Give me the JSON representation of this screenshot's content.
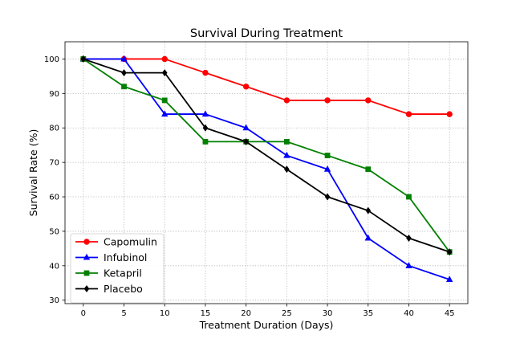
{
  "chart_data": {
    "type": "line",
    "title": "Survival During Treatment",
    "xlabel": "Treatment Duration (Days)",
    "ylabel": "Survival Rate (%)",
    "x": [
      0,
      5,
      10,
      15,
      20,
      25,
      30,
      35,
      40,
      45
    ],
    "xticks": [
      0,
      5,
      10,
      15,
      20,
      25,
      30,
      35,
      40,
      45
    ],
    "yticks": [
      30,
      40,
      50,
      60,
      70,
      80,
      90,
      100
    ],
    "xlim": [
      -2.25,
      47.25
    ],
    "ylim": [
      29,
      105
    ],
    "grid": true,
    "legend_position": "lower-left",
    "series": [
      {
        "name": "Capomulin",
        "color": "#ff0000",
        "marker": "circle",
        "values": [
          100,
          100,
          100,
          96,
          92,
          88,
          88,
          88,
          84,
          84
        ]
      },
      {
        "name": "Infubinol",
        "color": "#0000ff",
        "marker": "triangle",
        "values": [
          100,
          100,
          84,
          84,
          80,
          72,
          68,
          48,
          40,
          36
        ]
      },
      {
        "name": "Ketapril",
        "color": "#008000",
        "marker": "square",
        "values": [
          100,
          92,
          88,
          76,
          76,
          76,
          72,
          68,
          60,
          44
        ]
      },
      {
        "name": "Placebo",
        "color": "#000000",
        "marker": "diamond",
        "values": [
          100,
          96,
          96,
          80,
          76,
          68,
          60,
          56,
          48,
          44
        ]
      }
    ]
  }
}
